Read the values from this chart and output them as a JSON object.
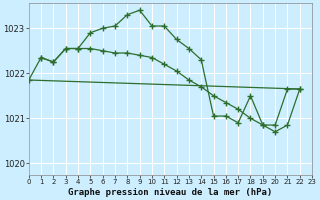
{
  "title": "Graphe pression niveau de la mer (hPa)",
  "bg_color": "#cceeff",
  "grid_color": "#ffffff",
  "line_color": "#2d6e2d",
  "xlim": [
    0,
    23
  ],
  "ylim": [
    1019.75,
    1023.55
  ],
  "yticks": [
    1020,
    1021,
    1022,
    1023
  ],
  "xticks": [
    0,
    1,
    2,
    3,
    4,
    5,
    6,
    7,
    8,
    9,
    10,
    11,
    12,
    13,
    14,
    15,
    16,
    17,
    18,
    19,
    20,
    21,
    22,
    23
  ],
  "line1_x": [
    1,
    2,
    3,
    4,
    5,
    6,
    7,
    8,
    9,
    10,
    11,
    12,
    13,
    14,
    15,
    16,
    17,
    18,
    19,
    20,
    21,
    22
  ],
  "line1_y": [
    1022.35,
    1022.25,
    1022.55,
    1022.55,
    1022.9,
    1023.0,
    1023.05,
    1023.3,
    1023.4,
    1023.05,
    1023.05,
    1022.75,
    1022.55,
    1022.3,
    1021.05,
    1021.05,
    1020.9,
    1021.5,
    1020.85,
    1020.85,
    1021.65,
    1021.65
  ],
  "line2_x": [
    0,
    22
  ],
  "line2_y": [
    1021.85,
    1021.65
  ],
  "line3_x": [
    0,
    1,
    2,
    3,
    4,
    5,
    6,
    7,
    8,
    9,
    10,
    11,
    12,
    13,
    14,
    15,
    16,
    17,
    18,
    19,
    20,
    21,
    22
  ],
  "line3_y": [
    1021.85,
    1022.35,
    1022.25,
    1022.55,
    1022.55,
    1022.55,
    1022.5,
    1022.45,
    1022.45,
    1022.4,
    1022.35,
    1022.2,
    1022.05,
    1021.85,
    1021.7,
    1021.5,
    1021.35,
    1021.2,
    1021.0,
    1020.85,
    1020.7,
    1020.85,
    1021.65
  ]
}
